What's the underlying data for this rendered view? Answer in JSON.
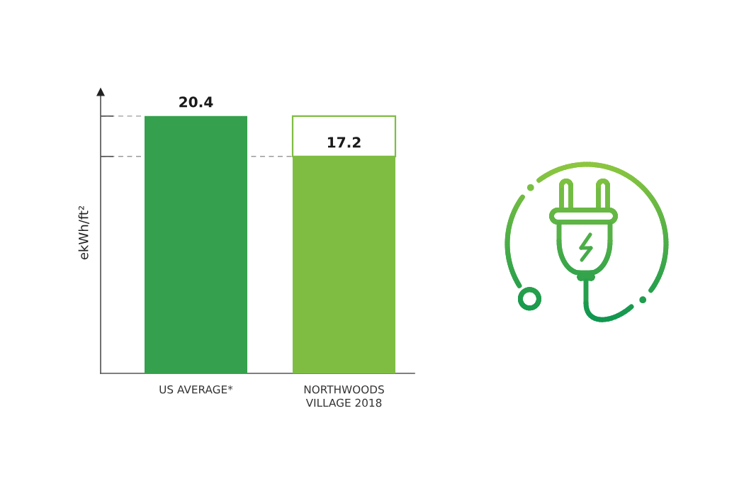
{
  "chart_data": {
    "type": "bar",
    "stacked": true,
    "ylabel": "ekWh/ft²",
    "categories": [
      "US AVERAGE*",
      "NORTHWOODS\nVILLAGE 2018"
    ],
    "series": [
      {
        "colors": [
          "#35a04d",
          "#7ebd42"
        ],
        "values": [
          20.4,
          17.2
        ],
        "value_labels": [
          "20.4",
          "17.2"
        ]
      },
      {
        "color": "#ffffff",
        "values": [
          null,
          3.2
        ]
      }
    ],
    "ylim": [
      0,
      22.3
    ],
    "ref_lines": [
      {
        "axis": "y",
        "value": 20.4,
        "color": "#9a9a9a",
        "line_style": "dashed"
      },
      {
        "axis": "y",
        "value": 17.2,
        "color": "#9a9a9a",
        "line_style": "dashed"
      }
    ],
    "tick_labels": "x"
  }
}
